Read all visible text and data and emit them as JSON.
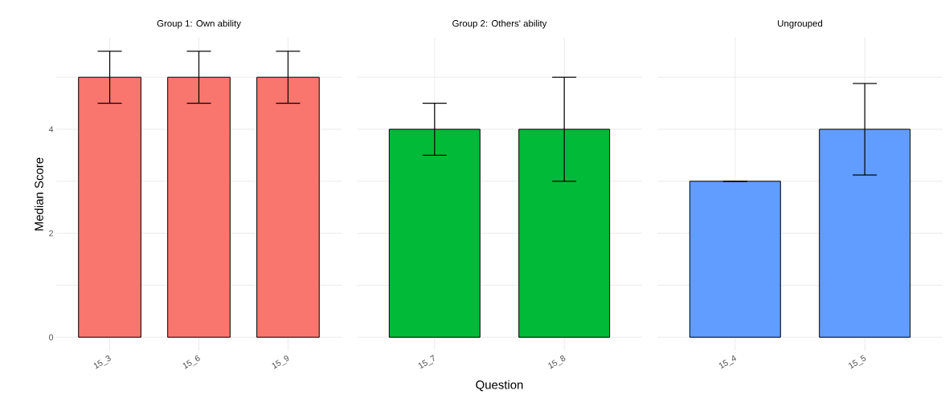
{
  "chart_data": [
    {
      "type": "bar",
      "title": "Group 1: Own ability",
      "ylabel": "Median Score",
      "categories": [
        "15_3",
        "15_6",
        "15_9"
      ],
      "values": [
        5,
        5,
        5
      ],
      "errors": [
        0.5,
        0.5,
        0.5
      ],
      "color": "#f8766d",
      "ylim": [
        -0.26,
        5.76
      ],
      "yticks": [
        0,
        {
          "value": 1,
          "label": null
        },
        2,
        {
          "value": 3,
          "label": null
        },
        4,
        {
          "value": 5,
          "label": null
        }
      ],
      "grid": true
    },
    {
      "type": "bar",
      "title": "Group 2: Others' ability",
      "xlabel": "Question",
      "categories": [
        "15_7",
        "15_8"
      ],
      "values": [
        4,
        4
      ],
      "errors": [
        0.5,
        1
      ],
      "color": "#00ba38",
      "ylim": [
        -0.26,
        5.76
      ],
      "yticks": [
        0,
        {
          "value": 1,
          "label": null
        },
        2,
        {
          "value": 3,
          "label": null
        },
        4,
        {
          "value": 5,
          "label": null
        }
      ],
      "grid": true,
      "tick_labels": "x"
    },
    {
      "type": "bar",
      "title": "Ungrouped",
      "categories": [
        "15_4",
        "15_5"
      ],
      "values": [
        3,
        4
      ],
      "errors": [
        0,
        0.88
      ],
      "color": "#619cff",
      "ylim": [
        -0.26,
        5.76
      ],
      "yticks": [
        0,
        {
          "value": 1,
          "label": null
        },
        2,
        {
          "value": 3,
          "label": null
        },
        4,
        {
          "value": 5,
          "label": null
        }
      ],
      "grid": true,
      "tick_labels": "x"
    }
  ]
}
